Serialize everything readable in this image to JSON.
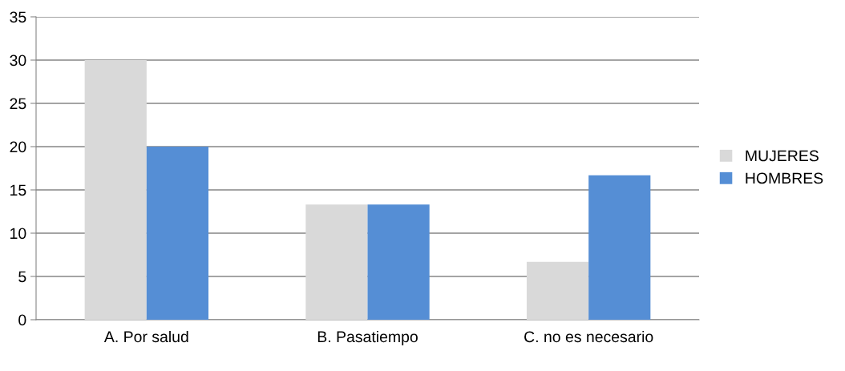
{
  "chart_data": {
    "type": "bar",
    "categories": [
      "A. Por salud",
      "B. Pasatiempo",
      "C. no es necesario"
    ],
    "series": [
      {
        "name": "MUJERES",
        "color": "#d9d9d9",
        "values": [
          30,
          13.3,
          6.7
        ]
      },
      {
        "name": "HOMBRES",
        "color": "#558ed5",
        "values": [
          20,
          13.3,
          16.7
        ]
      }
    ],
    "ylim": [
      0,
      35
    ],
    "yticks": [
      0,
      5,
      10,
      15,
      20,
      25,
      30,
      35
    ],
    "grid": "y",
    "legend": "right"
  }
}
